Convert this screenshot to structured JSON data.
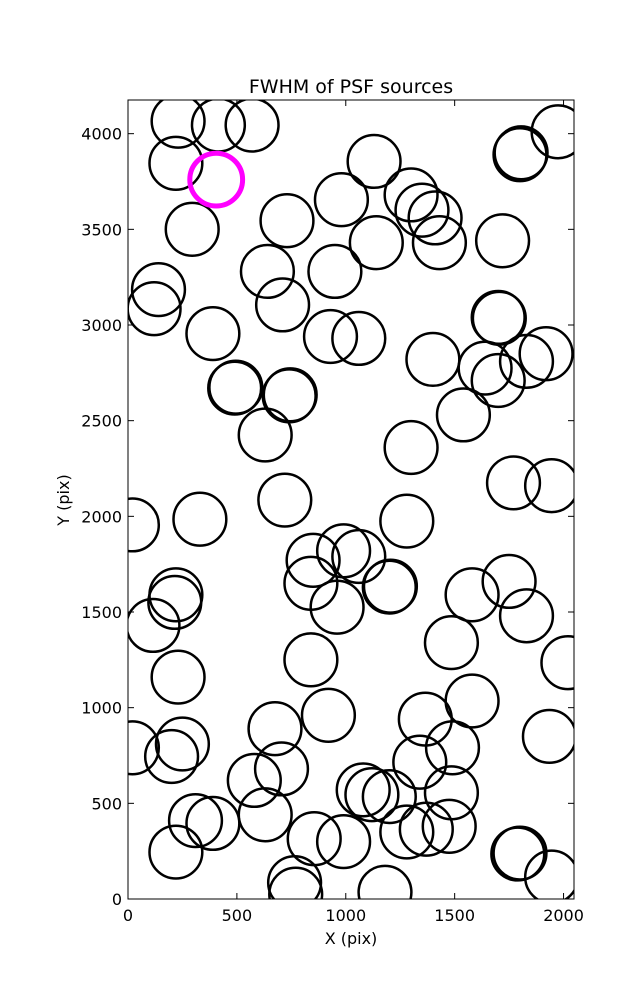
{
  "chart_data": {
    "type": "scatter",
    "title": "FWHM of PSF sources",
    "xlabel": "X (pix)",
    "ylabel": "Y (pix)",
    "xlim": [
      0,
      2048
    ],
    "ylim": [
      0,
      4176
    ],
    "grid": false,
    "xticks": [
      0,
      500,
      1000,
      1500,
      2000
    ],
    "yticks": [
      0,
      500,
      1000,
      1500,
      2000,
      2500,
      3000,
      3500,
      4000
    ],
    "marker": "open-circle",
    "circle_radius_data_x": 121,
    "source_color": "#000000",
    "highlight_color": "#ff00ff",
    "highlight": {
      "x": 405,
      "y": 3760
    },
    "sources": [
      {
        "x": 230,
        "y": 4065
      },
      {
        "x": 415,
        "y": 4045
      },
      {
        "x": 570,
        "y": 4045
      },
      {
        "x": 220,
        "y": 3845
      },
      {
        "x": 1130,
        "y": 3855
      },
      {
        "x": 1800,
        "y": 3890
      },
      {
        "x": 1805,
        "y": 3900
      },
      {
        "x": 1975,
        "y": 4010
      },
      {
        "x": 1300,
        "y": 3680
      },
      {
        "x": 1350,
        "y": 3600
      },
      {
        "x": 1410,
        "y": 3560
      },
      {
        "x": 1430,
        "y": 3430
      },
      {
        "x": 980,
        "y": 3655
      },
      {
        "x": 730,
        "y": 3545
      },
      {
        "x": 295,
        "y": 3500
      },
      {
        "x": 1140,
        "y": 3430
      },
      {
        "x": 1720,
        "y": 3440
      },
      {
        "x": 640,
        "y": 3280
      },
      {
        "x": 950,
        "y": 3280
      },
      {
        "x": 140,
        "y": 3185
      },
      {
        "x": 120,
        "y": 3085
      },
      {
        "x": 710,
        "y": 3105
      },
      {
        "x": 390,
        "y": 2955
      },
      {
        "x": 930,
        "y": 2940
      },
      {
        "x": 1060,
        "y": 2930
      },
      {
        "x": 1700,
        "y": 3040
      },
      {
        "x": 1705,
        "y": 3035
      },
      {
        "x": 1400,
        "y": 2820
      },
      {
        "x": 1640,
        "y": 2775
      },
      {
        "x": 1700,
        "y": 2710
      },
      {
        "x": 1830,
        "y": 2810
      },
      {
        "x": 1920,
        "y": 2850
      },
      {
        "x": 490,
        "y": 2670
      },
      {
        "x": 495,
        "y": 2675
      },
      {
        "x": 740,
        "y": 2630
      },
      {
        "x": 745,
        "y": 2635
      },
      {
        "x": 1540,
        "y": 2530
      },
      {
        "x": 630,
        "y": 2425
      },
      {
        "x": 1300,
        "y": 2360
      },
      {
        "x": 1770,
        "y": 2175
      },
      {
        "x": 1945,
        "y": 2160
      },
      {
        "x": 720,
        "y": 2085
      },
      {
        "x": 330,
        "y": 1985
      },
      {
        "x": 20,
        "y": 1955
      },
      {
        "x": 1280,
        "y": 1975
      },
      {
        "x": 850,
        "y": 1770
      },
      {
        "x": 990,
        "y": 1820
      },
      {
        "x": 1060,
        "y": 1790
      },
      {
        "x": 840,
        "y": 1650
      },
      {
        "x": 1200,
        "y": 1630
      },
      {
        "x": 1205,
        "y": 1635
      },
      {
        "x": 1750,
        "y": 1660
      },
      {
        "x": 220,
        "y": 1590
      },
      {
        "x": 215,
        "y": 1550
      },
      {
        "x": 1580,
        "y": 1590
      },
      {
        "x": 1830,
        "y": 1480
      },
      {
        "x": 960,
        "y": 1525
      },
      {
        "x": 115,
        "y": 1430
      },
      {
        "x": 1485,
        "y": 1340
      },
      {
        "x": 840,
        "y": 1250
      },
      {
        "x": 2020,
        "y": 1235
      },
      {
        "x": 230,
        "y": 1160
      },
      {
        "x": 1580,
        "y": 1035
      },
      {
        "x": 920,
        "y": 960
      },
      {
        "x": 1365,
        "y": 940
      },
      {
        "x": 1935,
        "y": 850
      },
      {
        "x": 675,
        "y": 890
      },
      {
        "x": 20,
        "y": 790
      },
      {
        "x": 250,
        "y": 810
      },
      {
        "x": 200,
        "y": 745
      },
      {
        "x": 1490,
        "y": 790
      },
      {
        "x": 1340,
        "y": 715
      },
      {
        "x": 705,
        "y": 680
      },
      {
        "x": 580,
        "y": 620
      },
      {
        "x": 1080,
        "y": 570
      },
      {
        "x": 1120,
        "y": 545
      },
      {
        "x": 1200,
        "y": 535
      },
      {
        "x": 1485,
        "y": 555
      },
      {
        "x": 630,
        "y": 440
      },
      {
        "x": 310,
        "y": 410
      },
      {
        "x": 390,
        "y": 395
      },
      {
        "x": 1280,
        "y": 350
      },
      {
        "x": 1370,
        "y": 365
      },
      {
        "x": 1475,
        "y": 380
      },
      {
        "x": 855,
        "y": 315
      },
      {
        "x": 990,
        "y": 300
      },
      {
        "x": 220,
        "y": 245
      },
      {
        "x": 1790,
        "y": 235
      },
      {
        "x": 1800,
        "y": 240
      },
      {
        "x": 1945,
        "y": 115
      },
      {
        "x": 765,
        "y": 85
      },
      {
        "x": 770,
        "y": 25
      },
      {
        "x": 1180,
        "y": 35
      }
    ]
  }
}
